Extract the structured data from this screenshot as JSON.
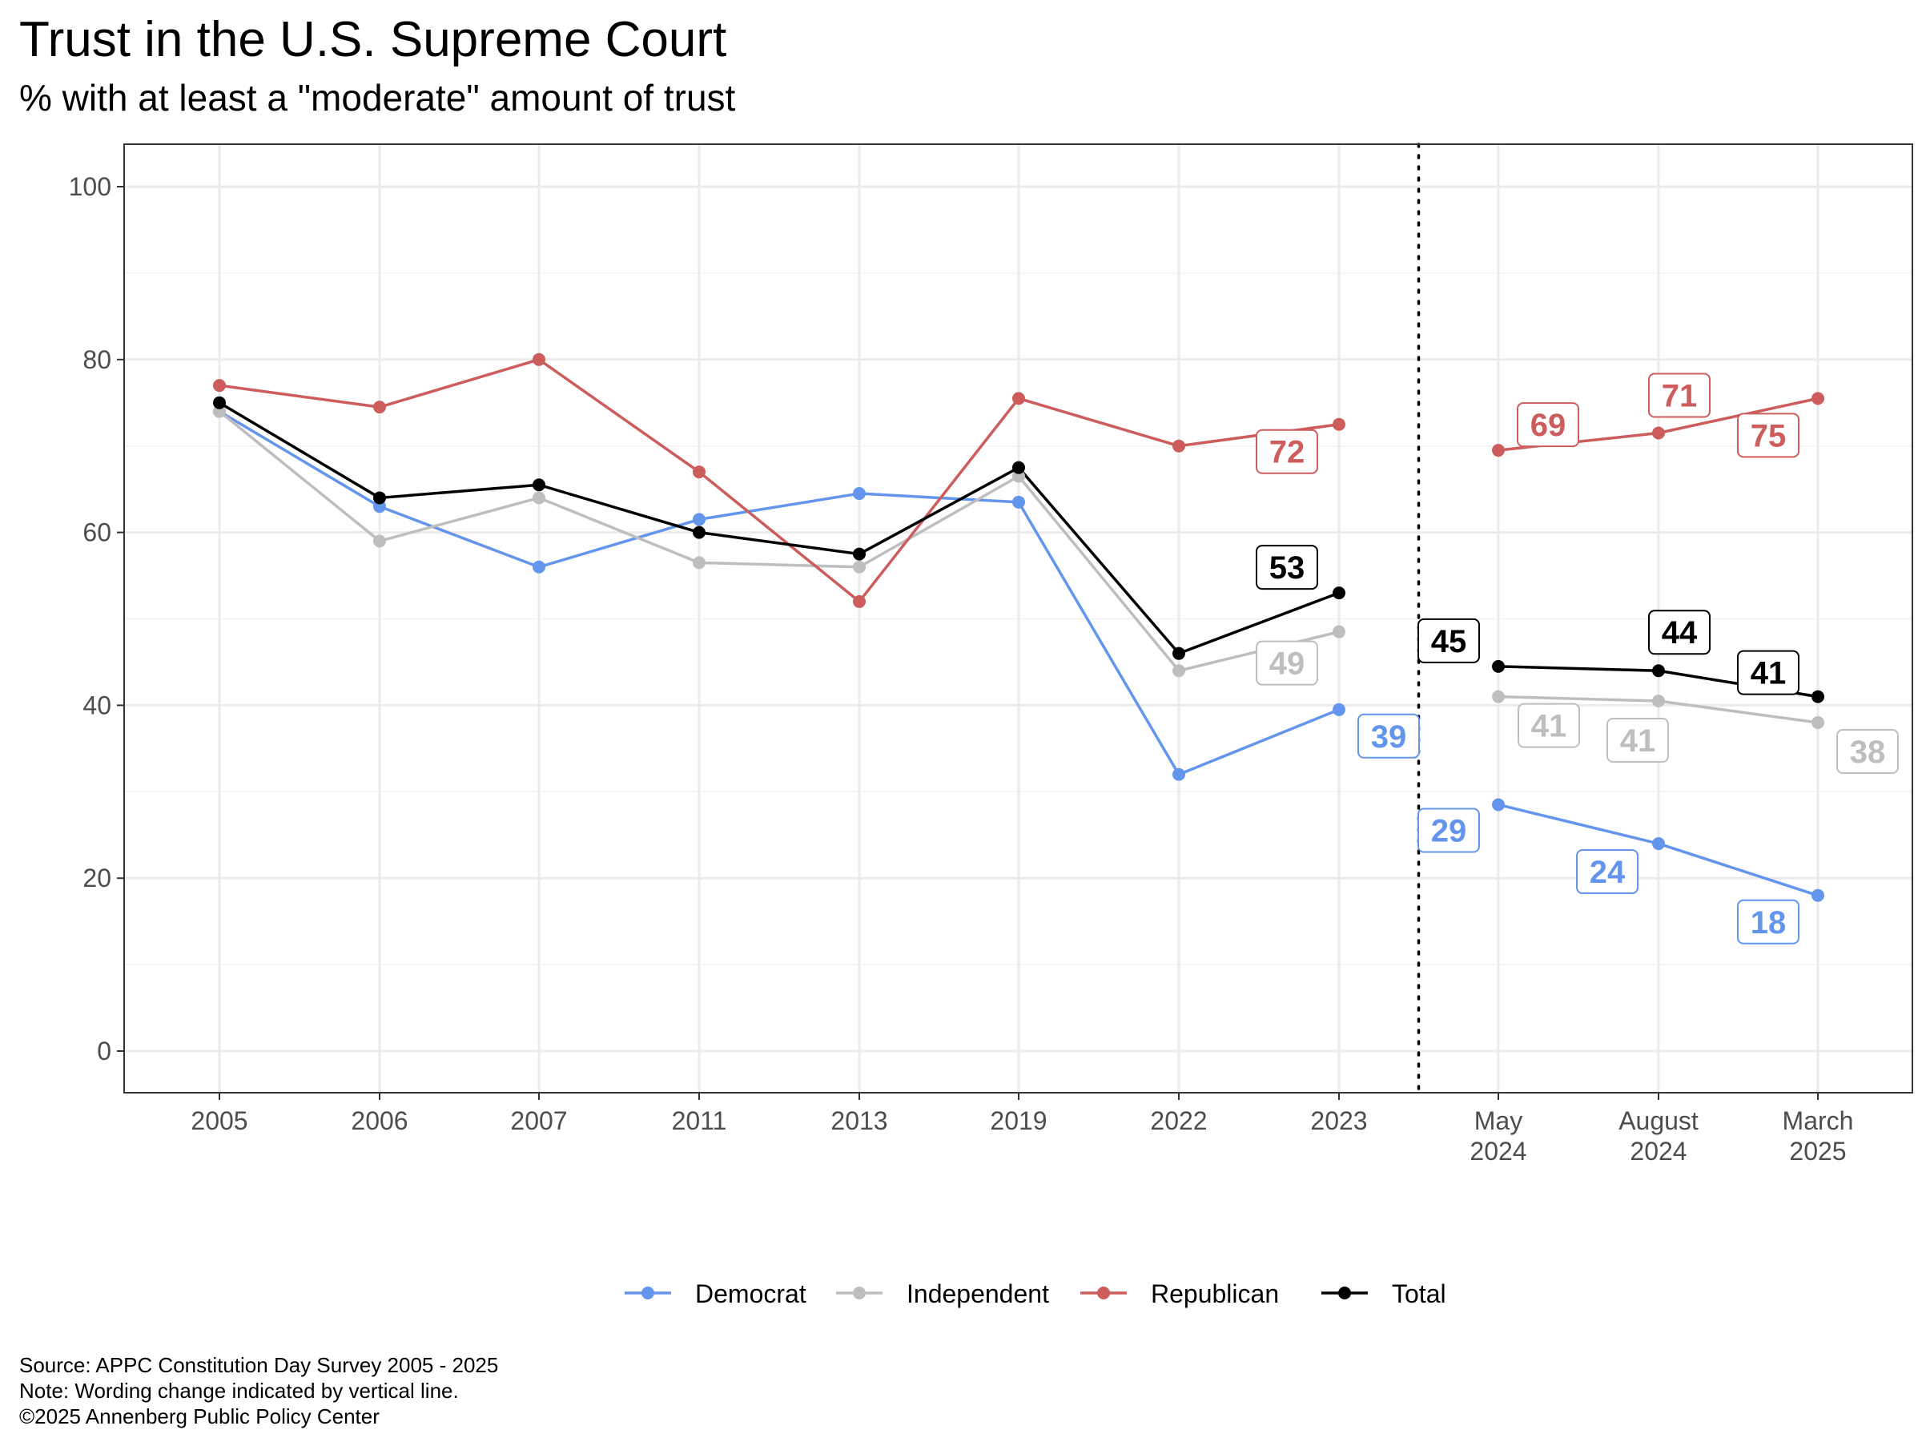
{
  "title": "Trust in the U.S. Supreme Court",
  "subtitle": "% with at least a \"moderate\" amount of trust",
  "notes": {
    "source": "Source: APPC Constitution Day Survey 2005 - 2025",
    "note": "Note: Wording change indicated by vertical line.",
    "copyright": "©2025 Annenberg Public Policy Center"
  },
  "colors": {
    "Democrat": "#6495ED",
    "Independent": "#BEBEBE",
    "Republican": "#CD5C5C",
    "Total": "#000000"
  },
  "chart_data": {
    "type": "line",
    "categories": [
      "2005",
      "2006",
      "2007",
      "2011",
      "2013",
      "2019",
      "2022",
      "2023",
      "May\n2024",
      "August\n2024",
      "March\n2025"
    ],
    "ylim": [
      0,
      100
    ],
    "yticks": [
      "0",
      "20",
      "40",
      "60",
      "80",
      "100"
    ],
    "grid": true,
    "legend_position": "bottom",
    "wording_change_after": "2023",
    "series": [
      {
        "name": "Democrat",
        "values": [
          74,
          63,
          56,
          61.5,
          64.5,
          63.5,
          32,
          39.5,
          28.5,
          24,
          18
        ]
      },
      {
        "name": "Independent",
        "values": [
          74,
          59,
          64,
          56.5,
          56,
          66.5,
          44,
          48.5,
          41,
          40.5,
          38
        ]
      },
      {
        "name": "Republican",
        "values": [
          77,
          74.5,
          80,
          67,
          52,
          75.5,
          70,
          72.5,
          69.5,
          71.5,
          75.5
        ]
      },
      {
        "name": "Total",
        "values": [
          75,
          64,
          65.5,
          60,
          57.5,
          67.5,
          46,
          53,
          44.5,
          44,
          41
        ]
      }
    ],
    "data_labels": [
      {
        "series": "Republican",
        "category": "2023",
        "text": "72"
      },
      {
        "series": "Total",
        "category": "2023",
        "text": "53"
      },
      {
        "series": "Independent",
        "category": "2023",
        "text": "49"
      },
      {
        "series": "Democrat",
        "category": "2023",
        "text": "39"
      },
      {
        "series": "Republican",
        "category": "May\n2024",
        "text": "69"
      },
      {
        "series": "Total",
        "category": "May\n2024",
        "text": "45"
      },
      {
        "series": "Independent",
        "category": "May\n2024",
        "text": "41"
      },
      {
        "series": "Democrat",
        "category": "May\n2024",
        "text": "29"
      },
      {
        "series": "Republican",
        "category": "August\n2024",
        "text": "71"
      },
      {
        "series": "Total",
        "category": "August\n2024",
        "text": "44"
      },
      {
        "series": "Independent",
        "category": "August\n2024",
        "text": "41"
      },
      {
        "series": "Democrat",
        "category": "August\n2024",
        "text": "24"
      },
      {
        "series": "Republican",
        "category": "March\n2025",
        "text": "75"
      },
      {
        "series": "Total",
        "category": "March\n2025",
        "text": "41"
      },
      {
        "series": "Independent",
        "category": "March\n2025",
        "text": "38"
      },
      {
        "series": "Democrat",
        "category": "March\n2025",
        "text": "18"
      }
    ]
  }
}
